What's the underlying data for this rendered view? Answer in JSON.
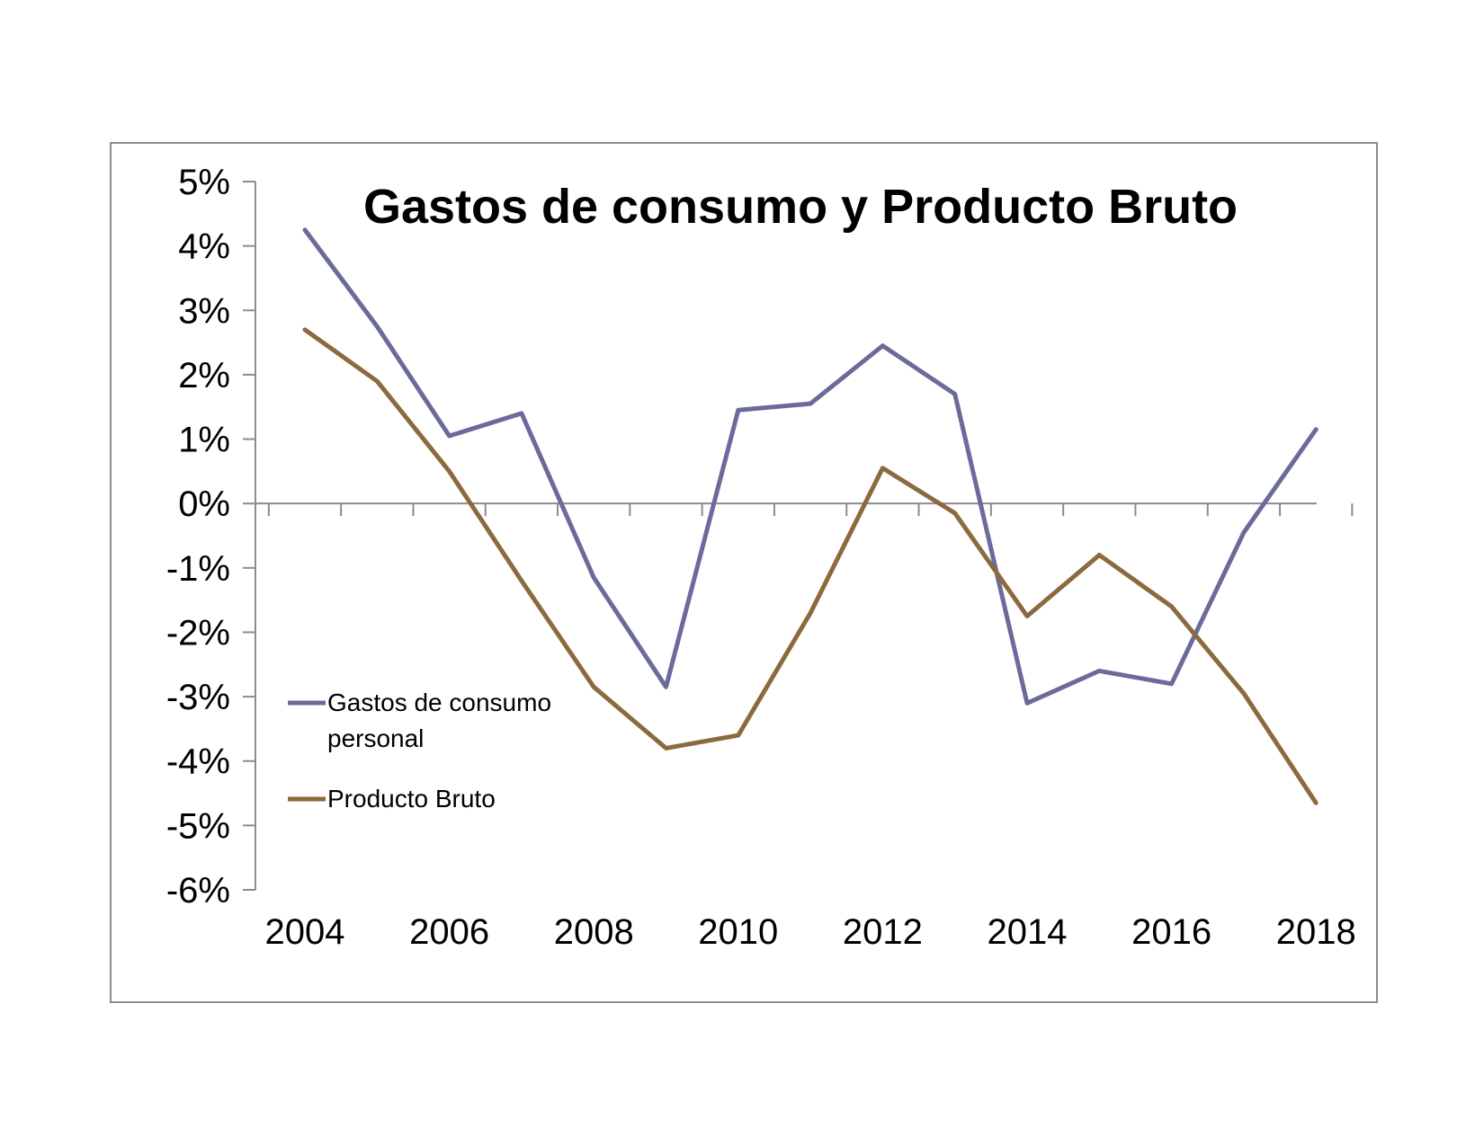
{
  "chart_data": {
    "type": "line",
    "title": "Gastos de consumo y Producto Bruto",
    "xlabel": "",
    "ylabel": "",
    "x": [
      2004,
      2005,
      2006,
      2007,
      2008,
      2009,
      2010,
      2011,
      2012,
      2013,
      2014,
      2015,
      2016,
      2017,
      2018
    ],
    "x_tick_labels": [
      "2004",
      "2006",
      "2008",
      "2010",
      "2012",
      "2014",
      "2016",
      "2018"
    ],
    "y_tick_labels": [
      "5%",
      "4%",
      "3%",
      "2%",
      "1%",
      "0%",
      "-1%",
      "-2%",
      "-3%",
      "-4%",
      "-5%",
      "-6%"
    ],
    "ylim": [
      -6,
      5
    ],
    "xlim": [
      2004,
      2019
    ],
    "grid": false,
    "legend_position": "left",
    "series": [
      {
        "name": "Gastos de consumo personal",
        "legend_lines": [
          "Gastos de consumo",
          "personal"
        ],
        "color": "#6b6b9b",
        "values": [
          4.25,
          2.75,
          1.05,
          1.4,
          -1.15,
          -2.85,
          1.45,
          1.55,
          2.45,
          1.7,
          -3.1,
          -2.6,
          -2.8,
          -0.45,
          1.15
        ]
      },
      {
        "name": "Producto Bruto",
        "legend_lines": [
          "Producto Bruto"
        ],
        "color": "#8b6a3e",
        "values": [
          2.7,
          1.9,
          0.5,
          -1.2,
          -2.85,
          -3.8,
          -3.6,
          -1.7,
          0.55,
          -0.15,
          -1.75,
          -0.8,
          -1.6,
          -2.95,
          -4.65
        ]
      }
    ]
  }
}
